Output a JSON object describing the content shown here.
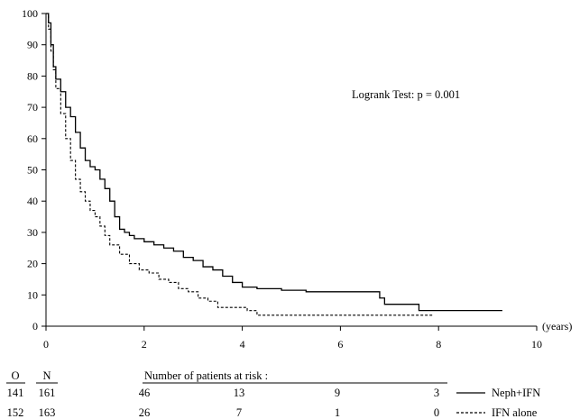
{
  "chart_data": {
    "type": "line",
    "title": "",
    "xlabel": "(years)",
    "ylabel": "",
    "xlim": [
      0,
      10
    ],
    "ylim": [
      0,
      100
    ],
    "xticks": [
      0,
      2,
      4,
      6,
      8,
      10
    ],
    "yticks": [
      0,
      10,
      20,
      30,
      40,
      50,
      60,
      70,
      80,
      90,
      100
    ],
    "grid": false,
    "step": true,
    "annotation": "Logrank Test: p = 0.001",
    "series": [
      {
        "name": "Neph+IFN",
        "line_style": "solid",
        "x": [
          0,
          0.05,
          0.1,
          0.15,
          0.2,
          0.3,
          0.4,
          0.5,
          0.6,
          0.7,
          0.8,
          0.9,
          1.0,
          1.1,
          1.2,
          1.3,
          1.4,
          1.5,
          1.6,
          1.7,
          1.8,
          2.0,
          2.2,
          2.4,
          2.6,
          2.8,
          3.0,
          3.2,
          3.4,
          3.6,
          3.8,
          4.0,
          4.3,
          4.8,
          5.3,
          5.8,
          6.3,
          6.8,
          6.9,
          7.5,
          7.6,
          8.5,
          9.3
        ],
        "y": [
          100,
          97,
          90,
          83,
          79,
          75,
          70,
          67,
          62,
          57,
          53,
          51,
          50,
          47,
          44,
          40,
          35,
          31,
          30,
          29,
          28,
          27,
          26,
          25,
          24,
          22,
          21,
          19,
          18,
          16,
          14,
          12.5,
          12,
          11.5,
          11,
          11,
          11,
          9,
          7,
          7,
          5,
          5,
          5
        ]
      },
      {
        "name": "IFN alone",
        "line_style": "dashed",
        "x": [
          0,
          0.05,
          0.1,
          0.15,
          0.2,
          0.3,
          0.4,
          0.5,
          0.6,
          0.7,
          0.8,
          0.9,
          1.0,
          1.1,
          1.2,
          1.3,
          1.5,
          1.7,
          1.9,
          2.1,
          2.3,
          2.5,
          2.7,
          2.9,
          3.1,
          3.3,
          3.5,
          3.9,
          4.1,
          4.3,
          5.0,
          6.0,
          7.0,
          7.9
        ],
        "y": [
          100,
          95,
          88,
          82,
          76,
          68,
          60,
          53,
          47,
          43,
          40,
          37,
          35,
          32,
          29,
          26,
          23,
          20,
          18,
          17,
          15,
          14,
          12,
          11,
          9,
          8,
          6,
          6,
          5,
          3.5,
          3.5,
          3.5,
          3.5,
          3.5
        ]
      }
    ]
  },
  "risk_table": {
    "headers": {
      "o": "O",
      "n": "N",
      "title": "Number of patients at risk :"
    },
    "rows": [
      {
        "o": "141",
        "n": "161",
        "counts": [
          "46",
          "13",
          "9",
          "3"
        ],
        "legend": "Neph+IFN",
        "line_style": "solid"
      },
      {
        "o": "152",
        "n": "163",
        "counts": [
          "26",
          "7",
          "1",
          "0"
        ],
        "legend": "IFN alone",
        "line_style": "dashed"
      }
    ]
  }
}
